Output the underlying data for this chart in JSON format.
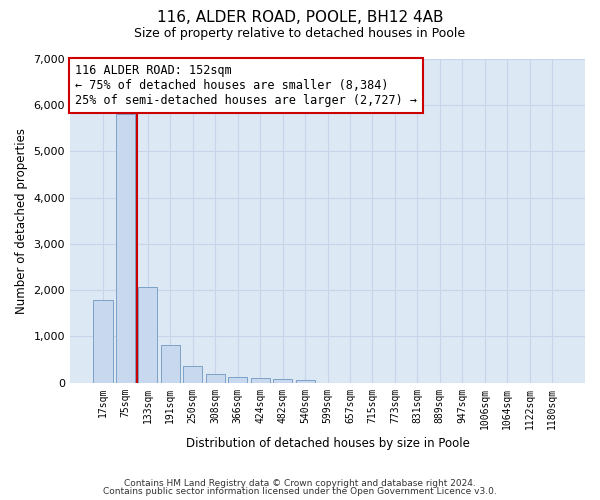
{
  "title_line1": "116, ALDER ROAD, POOLE, BH12 4AB",
  "title_line2": "Size of property relative to detached houses in Poole",
  "xlabel": "Distribution of detached houses by size in Poole",
  "ylabel": "Number of detached properties",
  "bar_labels": [
    "17sqm",
    "75sqm",
    "133sqm",
    "191sqm",
    "250sqm",
    "308sqm",
    "366sqm",
    "424sqm",
    "482sqm",
    "540sqm",
    "599sqm",
    "657sqm",
    "715sqm",
    "773sqm",
    "831sqm",
    "889sqm",
    "947sqm",
    "1006sqm",
    "1064sqm",
    "1122sqm",
    "1180sqm"
  ],
  "bar_values": [
    1780,
    5800,
    2060,
    820,
    350,
    190,
    120,
    110,
    90,
    65,
    0,
    0,
    0,
    0,
    0,
    0,
    0,
    0,
    0,
    0,
    0
  ],
  "bar_color": "#c8d8ee",
  "bar_edge_color": "#7098c0",
  "vline_x_bar_idx": 1.5,
  "annotation_text": "116 ALDER ROAD: 152sqm\n← 75% of detached houses are smaller (8,384)\n25% of semi-detached houses are larger (2,727) →",
  "annotation_box_color": "#ffffff",
  "annotation_box_edge": "#cc0000",
  "vline_color": "#cc0000",
  "ylim": [
    0,
    7000
  ],
  "yticks": [
    0,
    1000,
    2000,
    3000,
    4000,
    5000,
    6000,
    7000
  ],
  "grid_color": "#c8d4e8",
  "background_color": "#dce8f4",
  "footer_line1": "Contains HM Land Registry data © Crown copyright and database right 2024.",
  "footer_line2": "Contains public sector information licensed under the Open Government Licence v3.0."
}
